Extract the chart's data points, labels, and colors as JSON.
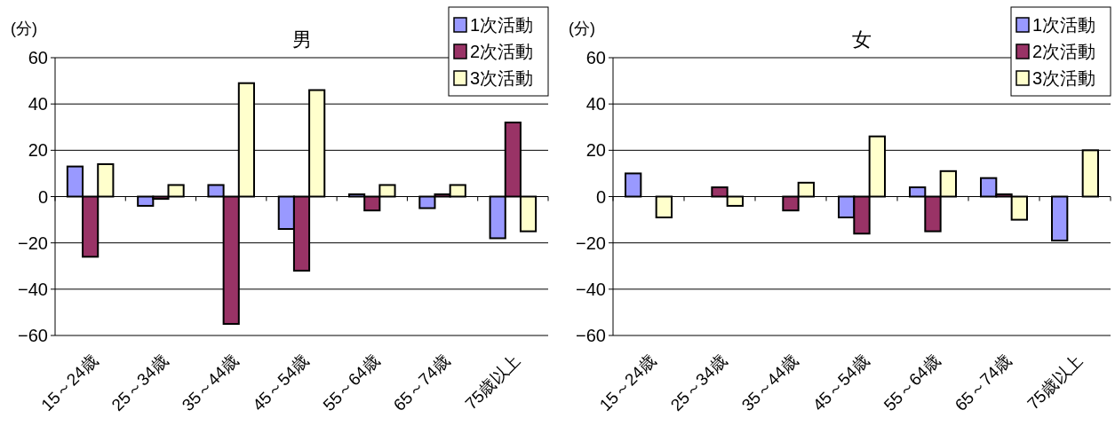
{
  "chart_data": [
    {
      "type": "bar",
      "title": "男",
      "ylabel": "(分)",
      "categories": [
        "15～24歳",
        "25～34歳",
        "35～44歳",
        "45～54歳",
        "55～64歳",
        "65～74歳",
        "75歳以上"
      ],
      "series": [
        {
          "name": "1次活動",
          "color": "#9999ff",
          "values": [
            13,
            -4,
            5,
            -14,
            1,
            -5,
            -18
          ]
        },
        {
          "name": "2次活動",
          "color": "#993366",
          "values": [
            -26,
            -1,
            -55,
            -32,
            -6,
            1,
            32
          ]
        },
        {
          "name": "3次活動",
          "color": "#ffffcc",
          "values": [
            14,
            5,
            49,
            46,
            5,
            5,
            -15
          ]
        }
      ],
      "ylim": [
        -60,
        60
      ],
      "yticks": [
        {
          "value": -60,
          "label": "−60"
        },
        {
          "value": -40,
          "label": "−40"
        },
        {
          "value": -20,
          "label": "−20"
        },
        0,
        20,
        40,
        60
      ],
      "grid": "y",
      "legend": "top right"
    },
    {
      "type": "bar",
      "title": "女",
      "ylabel": "(分)",
      "categories": [
        "15～24歳",
        "25～34歳",
        "35～44歳",
        "45～54歳",
        "55～64歳",
        "65～74歳",
        "75歳以上"
      ],
      "series": [
        {
          "name": "1次活動",
          "color": "#9999ff",
          "values": [
            10,
            0,
            0,
            -9,
            4,
            8,
            -19
          ]
        },
        {
          "name": "2次活動",
          "color": "#993366",
          "values": [
            0,
            4,
            -6,
            -16,
            -15,
            1,
            0
          ]
        },
        {
          "name": "3次活動",
          "color": "#ffffcc",
          "values": [
            -9,
            -4,
            6,
            26,
            11,
            -10,
            20
          ]
        }
      ],
      "ylim": [
        -60,
        60
      ],
      "yticks": [
        {
          "value": -60,
          "label": "−60"
        },
        {
          "value": -40,
          "label": "−40"
        },
        {
          "value": -20,
          "label": "−20"
        },
        0,
        20,
        40,
        60
      ],
      "grid": "y",
      "legend": "top right"
    }
  ]
}
